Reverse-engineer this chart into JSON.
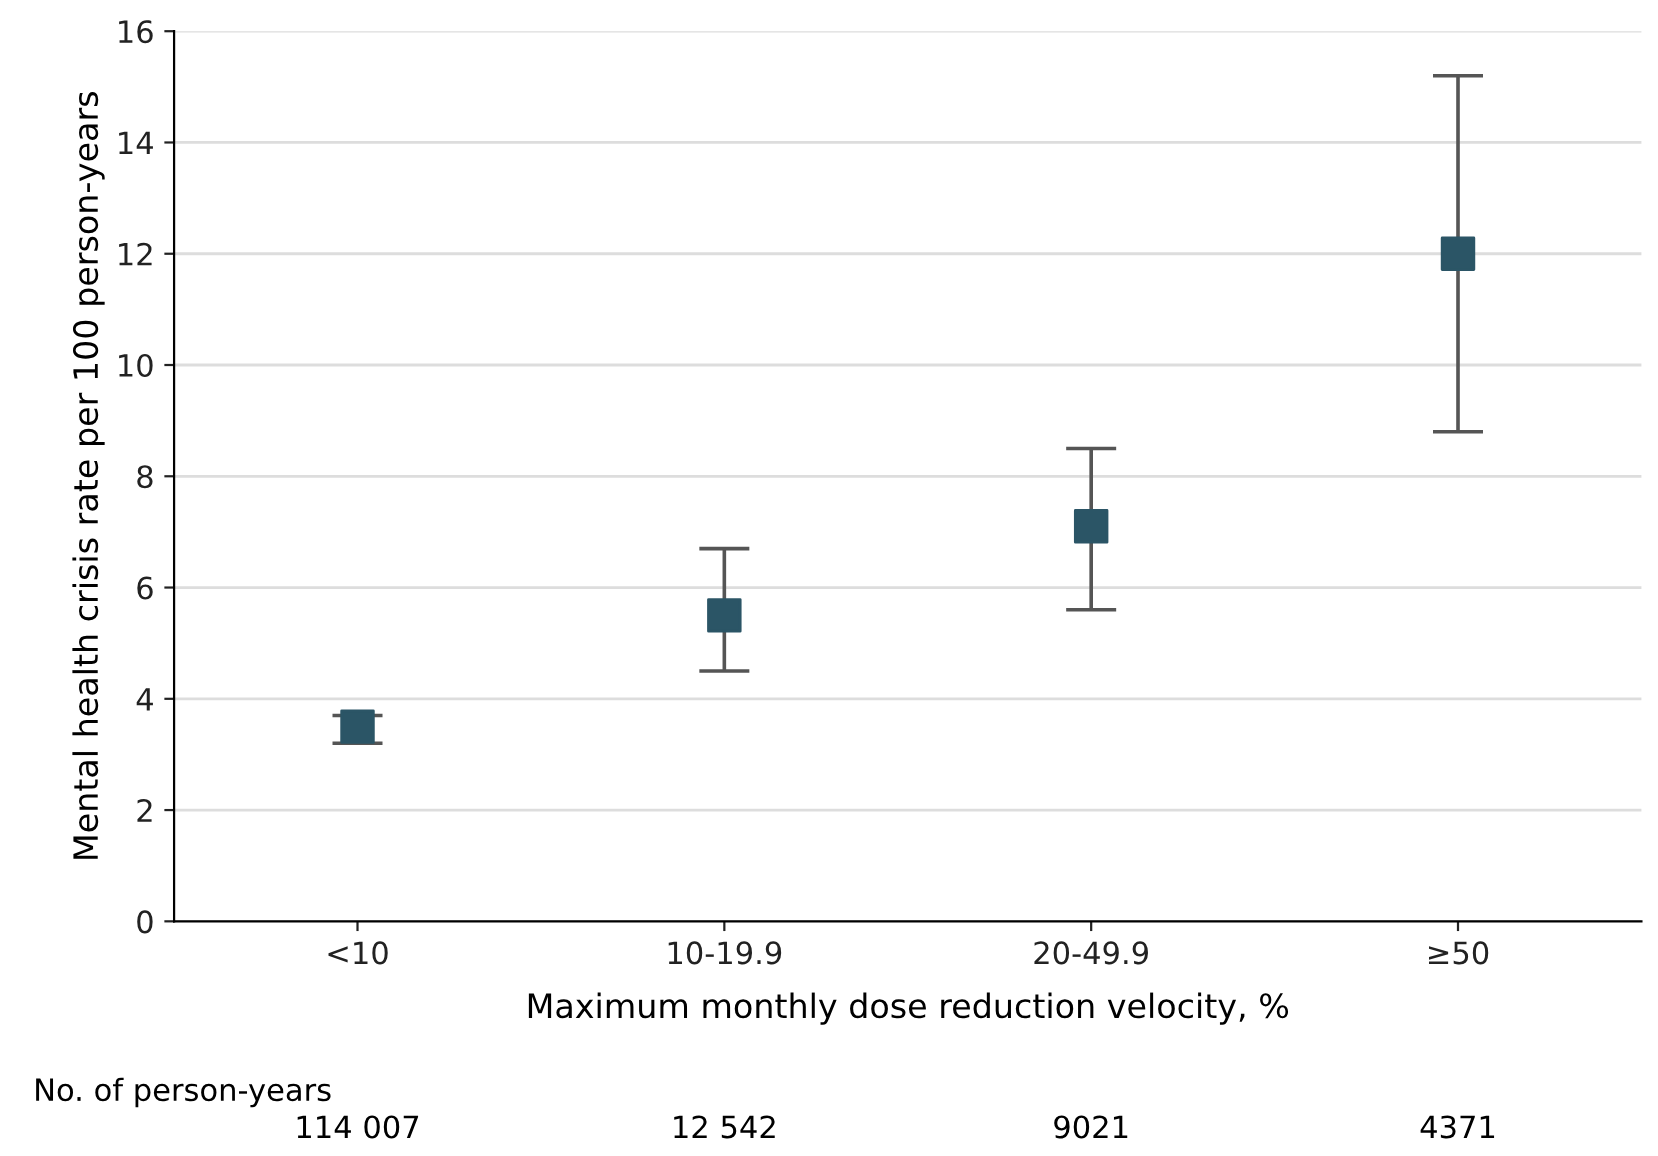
{
  "chart_data": {
    "type": "scatter",
    "xlabel": "Maximum monthly dose reduction velocity, %",
    "ylabel": "Mental health crisis rate per 100 person-years",
    "categories": [
      "<10",
      "10-19.9",
      "20-49.9",
      "≥50"
    ],
    "series": [
      {
        "color": "#2b5566",
        "values": [
          3.5,
          5.5,
          7.1,
          12.0
        ],
        "errors": [
          [
            3.2,
            3.7
          ],
          [
            4.5,
            6.7
          ],
          [
            5.6,
            8.5
          ],
          [
            8.8,
            15.2
          ]
        ]
      }
    ],
    "ylim": [
      0,
      16
    ],
    "yticks": [
      0,
      2,
      4,
      6,
      8,
      10,
      12,
      14,
      16
    ],
    "grid": "y",
    "marker": "square",
    "annotations": [
      "No. of person-years",
      "114 007",
      "12 542",
      "9021",
      "4371"
    ]
  }
}
